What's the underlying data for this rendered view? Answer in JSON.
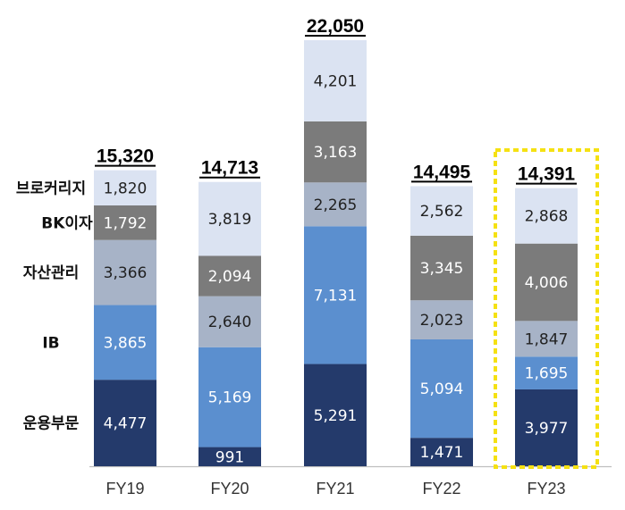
{
  "chart_data": {
    "type": "stacked-bar",
    "categories": [
      "FY19",
      "FY20",
      "FY21",
      "FY22",
      "FY23"
    ],
    "series": [
      {
        "name": "운용부문",
        "values": [
          4477,
          991,
          5291,
          1471,
          3977
        ]
      },
      {
        "name": "IB",
        "values": [
          3865,
          5169,
          7131,
          5094,
          1695
        ]
      },
      {
        "name": "자산관리",
        "values": [
          3366,
          2640,
          2265,
          2023,
          1847
        ]
      },
      {
        "name": "BK이자",
        "values": [
          1792,
          2094,
          3163,
          3345,
          4006
        ]
      },
      {
        "name": "브로커리지",
        "values": [
          1820,
          3819,
          4201,
          2562,
          2868
        ]
      }
    ],
    "series_labels": [
      [
        "4,477",
        "991",
        "5,291",
        "1,471",
        "3,977"
      ],
      [
        "3,865",
        "5,169",
        "7,131",
        "5,094",
        "1,695"
      ],
      [
        "3,366",
        "2,640",
        "2,265",
        "2,023",
        "1,847"
      ],
      [
        "1,792",
        "2,094",
        "3,163",
        "3,345",
        "4,006"
      ],
      [
        "1,820",
        "3,819",
        "4,201",
        "2,562",
        "2,868"
      ]
    ],
    "totals": [
      15320,
      14713,
      22050,
      14495,
      14391
    ],
    "total_labels": [
      "15,320",
      "14,713",
      "22,050",
      "14,495",
      "14,391"
    ],
    "highlight_category": "FY23",
    "ylim": [
      0,
      22050
    ],
    "colors": {
      "운용부문": "#243a6b",
      "IB": "#5b8fcf",
      "자산관리": "#a7b3c7",
      "BK이자": "#7b7b7b",
      "브로커리지": "#dbe3f2",
      "highlight": "#f5e112",
      "axis": "#bfbfbf"
    },
    "legend_position": "left",
    "title": "",
    "xlabel": "",
    "ylabel": ""
  }
}
